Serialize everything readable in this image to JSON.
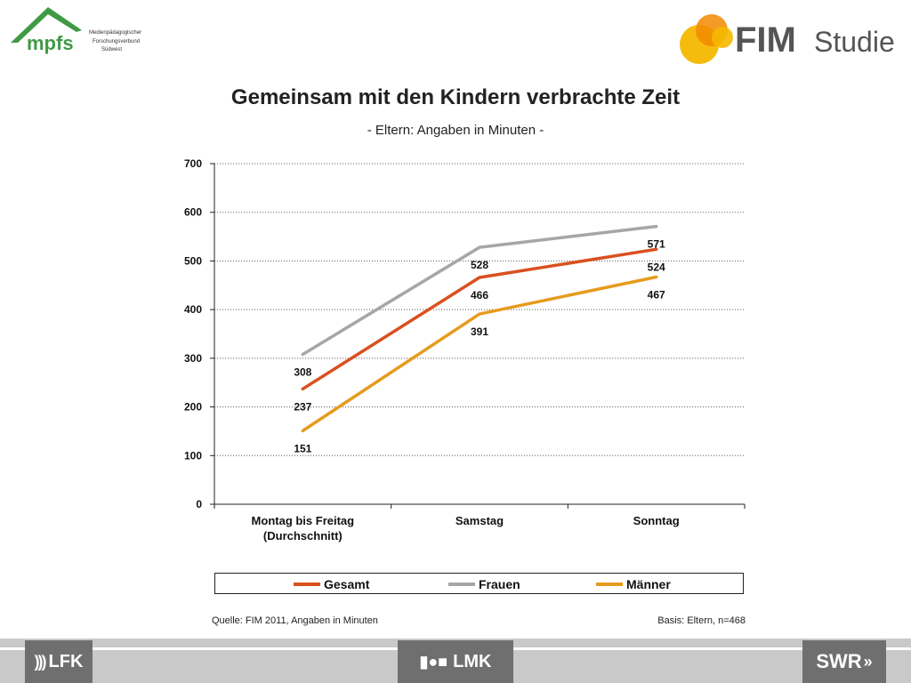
{
  "header": {
    "mpfs_logo": {
      "wordmark": "mpfs",
      "lines": [
        "Medienpädagogischer",
        "Forschungsverbund",
        "Südwest"
      ]
    },
    "fim_logo": {
      "text_bold": "FIM",
      "text_light": "Studie"
    }
  },
  "title": "Gemeinsam mit den Kindern verbrachte Zeit",
  "subtitle": "- Eltern: Angaben in Minuten -",
  "chart_data": {
    "type": "line",
    "title": "Gemeinsam mit den Kindern verbrachte Zeit",
    "subtitle": "- Eltern: Angaben in Minuten -",
    "categories": [
      "Montag bis Freitag (Durchschnitt)",
      "Samstag",
      "Sonntag"
    ],
    "category_lines": [
      [
        "Montag bis Freitag",
        "(Durchschnitt)"
      ],
      [
        "Samstag"
      ],
      [
        "Sonntag"
      ]
    ],
    "ylim": [
      0,
      700
    ],
    "yticks": [
      0,
      100,
      200,
      300,
      400,
      500,
      600,
      700
    ],
    "grid": true,
    "legend_position": "bottom",
    "series": [
      {
        "name": "Gesamt",
        "values": [
          237,
          466,
          524
        ],
        "color": "#d9501f"
      },
      {
        "name": "Frauen",
        "values": [
          308,
          528,
          571
        ],
        "color": "#a6a6a6"
      },
      {
        "name": "Männer",
        "values": [
          151,
          391,
          467
        ],
        "color": "#e69b1e"
      }
    ]
  },
  "legend": [
    "Gesamt",
    "Frauen",
    "Männer"
  ],
  "source_note": "Quelle: FIM 2011,  Angaben in Minuten",
  "basis_note": "Basis: Eltern, n=468",
  "footer": {
    "left_logo": "LFK",
    "center_logo": "LMK",
    "right_logo": "SWR"
  },
  "colors": {
    "gesamt": "#d9501f",
    "frauen": "#a6a6a6",
    "maenner": "#e69b1e",
    "mpfs_green": "#3f9a45",
    "fim_yellow": "#f5b800",
    "fim_orange": "#f18a00"
  }
}
